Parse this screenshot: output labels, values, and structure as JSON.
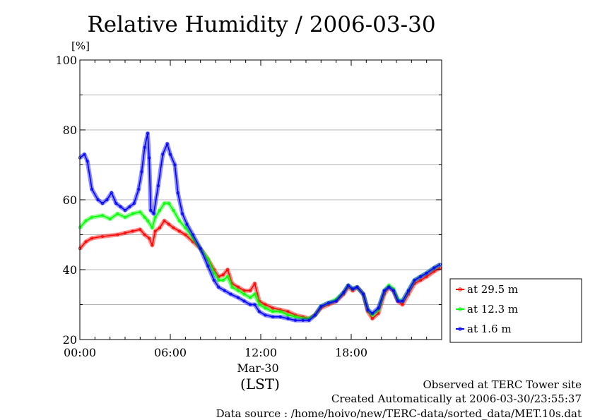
{
  "chart_data": {
    "type": "line",
    "title": "Relative Humidity / 2006-03-30",
    "ylabel": "[%]",
    "xlabel": "(LST)",
    "x_date_label": "Mar-30",
    "ylim": [
      20,
      100
    ],
    "xlim_hours": [
      0,
      24
    ],
    "y_ticks": [
      "20",
      "40",
      "60",
      "80",
      "100"
    ],
    "x_ticks": [
      {
        "hour": 0,
        "label": "00:00"
      },
      {
        "hour": 6,
        "label": "06:00"
      },
      {
        "hour": 12,
        "label": "12:00"
      },
      {
        "hour": 18,
        "label": "18:00"
      }
    ],
    "grid": true,
    "legend_position": "right",
    "series": [
      {
        "name": "at 29.5 m",
        "color": "#ff0000",
        "values": [
          [
            0,
            46
          ],
          [
            0.4,
            48
          ],
          [
            0.8,
            49
          ],
          [
            1.5,
            49.5
          ],
          [
            2.5,
            50
          ],
          [
            3,
            50.5
          ],
          [
            3.5,
            51
          ],
          [
            4,
            51.5
          ],
          [
            4.3,
            50
          ],
          [
            4.6,
            49
          ],
          [
            4.8,
            47
          ],
          [
            5,
            51
          ],
          [
            5.3,
            52
          ],
          [
            5.6,
            54
          ],
          [
            5.9,
            53
          ],
          [
            6.2,
            52
          ],
          [
            6.6,
            51
          ],
          [
            7,
            50
          ],
          [
            7.5,
            48
          ],
          [
            8,
            46
          ],
          [
            8.5,
            43
          ],
          [
            8.9,
            40
          ],
          [
            9.2,
            38
          ],
          [
            9.5,
            38.5
          ],
          [
            9.8,
            40
          ],
          [
            10.1,
            36
          ],
          [
            10.5,
            35
          ],
          [
            10.9,
            34
          ],
          [
            11.3,
            34
          ],
          [
            11.6,
            36
          ],
          [
            11.9,
            31
          ],
          [
            12.3,
            30
          ],
          [
            12.8,
            29
          ],
          [
            13.3,
            28.5
          ],
          [
            13.8,
            28
          ],
          [
            14.3,
            27
          ],
          [
            14.8,
            26.5
          ],
          [
            15.2,
            26
          ],
          [
            15.6,
            27
          ],
          [
            16,
            29
          ],
          [
            16.5,
            30
          ],
          [
            17,
            31
          ],
          [
            17.5,
            33
          ],
          [
            17.8,
            35
          ],
          [
            18.1,
            34
          ],
          [
            18.4,
            35
          ],
          [
            18.8,
            33
          ],
          [
            19.1,
            28
          ],
          [
            19.4,
            26
          ],
          [
            19.8,
            27.5
          ],
          [
            20.2,
            33
          ],
          [
            20.5,
            35
          ],
          [
            20.8,
            34
          ],
          [
            21.1,
            31
          ],
          [
            21.4,
            30
          ],
          [
            21.8,
            33
          ],
          [
            22.2,
            36
          ],
          [
            22.6,
            37
          ],
          [
            23,
            38
          ],
          [
            23.5,
            39.5
          ],
          [
            23.9,
            40.5
          ]
        ]
      },
      {
        "name": "at 12.3 m",
        "color": "#00ff00",
        "values": [
          [
            0,
            52
          ],
          [
            0.4,
            54
          ],
          [
            0.8,
            55
          ],
          [
            1.5,
            55.5
          ],
          [
            2,
            54.5
          ],
          [
            2.5,
            56
          ],
          [
            3,
            55
          ],
          [
            3.5,
            56
          ],
          [
            4,
            56.5
          ],
          [
            4.3,
            55
          ],
          [
            4.5,
            54
          ],
          [
            4.8,
            52
          ],
          [
            5,
            55
          ],
          [
            5.3,
            57
          ],
          [
            5.6,
            59
          ],
          [
            5.9,
            59
          ],
          [
            6.2,
            57
          ],
          [
            6.6,
            54
          ],
          [
            7,
            52
          ],
          [
            7.5,
            49
          ],
          [
            8,
            46
          ],
          [
            8.5,
            43
          ],
          [
            8.9,
            39
          ],
          [
            9.2,
            37
          ],
          [
            9.5,
            37
          ],
          [
            9.8,
            38
          ],
          [
            10.1,
            35
          ],
          [
            10.5,
            34
          ],
          [
            10.9,
            33
          ],
          [
            11.3,
            32
          ],
          [
            11.6,
            33
          ],
          [
            11.9,
            30
          ],
          [
            12.3,
            29
          ],
          [
            12.8,
            28
          ],
          [
            13.3,
            28
          ],
          [
            13.8,
            27
          ],
          [
            14.3,
            26.5
          ],
          [
            14.8,
            26
          ],
          [
            15.2,
            26
          ],
          [
            15.6,
            27
          ],
          [
            16,
            29.5
          ],
          [
            16.5,
            30.5
          ],
          [
            17,
            31.5
          ],
          [
            17.5,
            33.5
          ],
          [
            17.8,
            35.5
          ],
          [
            18.1,
            34.5
          ],
          [
            18.4,
            35
          ],
          [
            18.8,
            33
          ],
          [
            19.1,
            28.5
          ],
          [
            19.4,
            27
          ],
          [
            19.8,
            28.5
          ],
          [
            20.2,
            34
          ],
          [
            20.5,
            35.5
          ],
          [
            20.8,
            34.5
          ],
          [
            21.1,
            31.5
          ],
          [
            21.4,
            31
          ],
          [
            21.8,
            34
          ],
          [
            22.2,
            37
          ],
          [
            22.6,
            38
          ],
          [
            23,
            39
          ],
          [
            23.5,
            40.5
          ],
          [
            23.9,
            41.5
          ]
        ]
      },
      {
        "name": "at 1.6 m",
        "color": "#0000ff",
        "values": [
          [
            0,
            72
          ],
          [
            0.3,
            73
          ],
          [
            0.5,
            71
          ],
          [
            0.8,
            63
          ],
          [
            1.2,
            60
          ],
          [
            1.5,
            59
          ],
          [
            1.8,
            60
          ],
          [
            2.1,
            62
          ],
          [
            2.4,
            59
          ],
          [
            2.7,
            58
          ],
          [
            3,
            57
          ],
          [
            3.3,
            58
          ],
          [
            3.6,
            59
          ],
          [
            3.9,
            63
          ],
          [
            4.1,
            68
          ],
          [
            4.3,
            75
          ],
          [
            4.5,
            79
          ],
          [
            4.6,
            72
          ],
          [
            4.7,
            57
          ],
          [
            4.9,
            56
          ],
          [
            5.2,
            64
          ],
          [
            5.5,
            73
          ],
          [
            5.8,
            76
          ],
          [
            6,
            73
          ],
          [
            6.3,
            70
          ],
          [
            6.5,
            62
          ],
          [
            6.8,
            56
          ],
          [
            7.1,
            53
          ],
          [
            7.5,
            50
          ],
          [
            8,
            46
          ],
          [
            8.5,
            41
          ],
          [
            8.9,
            37
          ],
          [
            9.2,
            35
          ],
          [
            9.6,
            34
          ],
          [
            10,
            33
          ],
          [
            10.5,
            32
          ],
          [
            10.9,
            31
          ],
          [
            11.3,
            30
          ],
          [
            11.6,
            30
          ],
          [
            11.9,
            28
          ],
          [
            12.3,
            27
          ],
          [
            12.8,
            26.5
          ],
          [
            13.3,
            26.5
          ],
          [
            13.8,
            26
          ],
          [
            14.3,
            25.5
          ],
          [
            14.8,
            25.5
          ],
          [
            15.2,
            25.5
          ],
          [
            15.6,
            27
          ],
          [
            16,
            29.5
          ],
          [
            16.5,
            30.5
          ],
          [
            17,
            31
          ],
          [
            17.5,
            33.5
          ],
          [
            17.8,
            35.5
          ],
          [
            18.1,
            34.5
          ],
          [
            18.4,
            35
          ],
          [
            18.8,
            33
          ],
          [
            19.1,
            28.5
          ],
          [
            19.4,
            27.5
          ],
          [
            19.8,
            29
          ],
          [
            20.2,
            34
          ],
          [
            20.5,
            35
          ],
          [
            20.8,
            34
          ],
          [
            21.1,
            31
          ],
          [
            21.4,
            31
          ],
          [
            21.8,
            34
          ],
          [
            22.2,
            37
          ],
          [
            22.6,
            38
          ],
          [
            23,
            39
          ],
          [
            23.5,
            40.5
          ],
          [
            23.9,
            41.5
          ]
        ]
      }
    ]
  },
  "footer": {
    "line1": "Observed at TERC Tower site",
    "line2": "Created Automatically at 2006-03-30/23:55:37",
    "line3": "Data source : /home/hoivo/new/TERC-data/sorted_data/MET.10s.dat"
  }
}
